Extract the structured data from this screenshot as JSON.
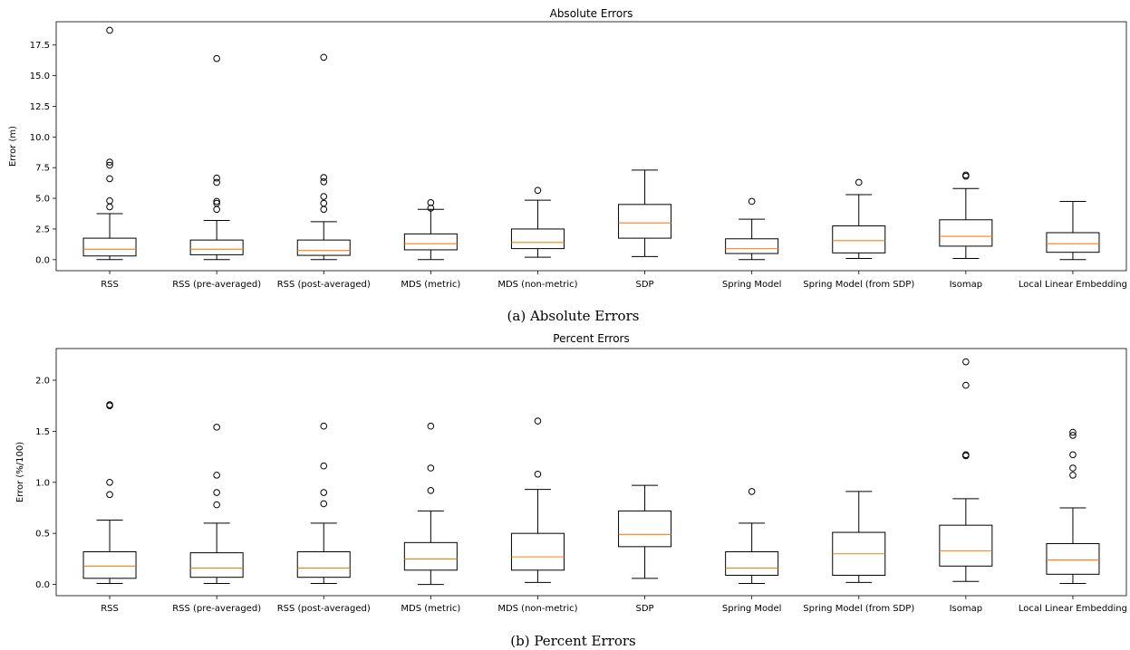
{
  "chart_data": [
    {
      "type": "box",
      "title": "Absolute Errors",
      "caption": "(a) Absolute Errors",
      "xlabel": "",
      "ylabel": "Error (m)",
      "ylim": [
        -0.9,
        19.4
      ],
      "yticks": [
        "0.0",
        "2.5",
        "5.0",
        "7.5",
        "10.0",
        "12.5",
        "15.0",
        "17.5"
      ],
      "yticks_values": [
        0,
        2.5,
        5,
        7.5,
        10,
        12.5,
        15,
        17.5
      ],
      "grid": false,
      "categories": [
        "RSS",
        "RSS (pre-averaged)",
        "RSS (post-averaged)",
        "MDS (metric)",
        "MDS (non-metric)",
        "SDP",
        "Spring Model",
        "Spring Model (from SDP)",
        "Isomap",
        "Local Linear Embedding"
      ],
      "boxes": [
        {
          "whisker_low": 0.0,
          "q1": 0.3,
          "median": 0.85,
          "q3": 1.75,
          "whisker_high": 3.75,
          "outliers": [
            4.3,
            4.8,
            6.6,
            7.7,
            7.95,
            18.7
          ]
        },
        {
          "whisker_low": 0.0,
          "q1": 0.4,
          "median": 0.85,
          "q3": 1.6,
          "whisker_high": 3.2,
          "outliers": [
            4.1,
            4.6,
            4.75,
            6.3,
            6.65,
            16.4
          ]
        },
        {
          "whisker_low": 0.0,
          "q1": 0.35,
          "median": 0.75,
          "q3": 1.6,
          "whisker_high": 3.1,
          "outliers": [
            4.1,
            4.6,
            5.15,
            6.35,
            6.7,
            16.5
          ]
        },
        {
          "whisker_low": 0.0,
          "q1": 0.8,
          "median": 1.3,
          "q3": 2.1,
          "whisker_high": 4.1,
          "outliers": [
            4.2,
            4.65
          ]
        },
        {
          "whisker_low": 0.2,
          "q1": 0.9,
          "median": 1.4,
          "q3": 2.5,
          "whisker_high": 4.85,
          "outliers": [
            5.65
          ]
        },
        {
          "whisker_low": 0.25,
          "q1": 1.75,
          "median": 3.0,
          "q3": 4.5,
          "whisker_high": 7.3,
          "outliers": []
        },
        {
          "whisker_low": 0.0,
          "q1": 0.5,
          "median": 0.9,
          "q3": 1.7,
          "whisker_high": 3.3,
          "outliers": [
            4.75
          ]
        },
        {
          "whisker_low": 0.1,
          "q1": 0.55,
          "median": 1.55,
          "q3": 2.75,
          "whisker_high": 5.3,
          "outliers": [
            6.3
          ]
        },
        {
          "whisker_low": 0.1,
          "q1": 1.1,
          "median": 1.9,
          "q3": 3.25,
          "whisker_high": 5.8,
          "outliers": [
            6.8,
            6.9
          ]
        },
        {
          "whisker_low": 0.0,
          "q1": 0.6,
          "median": 1.3,
          "q3": 2.2,
          "whisker_high": 4.75,
          "outliers": []
        }
      ]
    },
    {
      "type": "box",
      "title": "Percent Errors",
      "caption": "(b) Percent Errors",
      "xlabel": "",
      "ylabel": "Error (%/100)",
      "ylim": [
        -0.11,
        2.31
      ],
      "yticks": [
        "0.0",
        "0.5",
        "1.0",
        "1.5",
        "2.0"
      ],
      "yticks_values": [
        0,
        0.5,
        1,
        1.5,
        2
      ],
      "grid": false,
      "categories": [
        "RSS",
        "RSS (pre-averaged)",
        "RSS (post-averaged)",
        "MDS (metric)",
        "MDS (non-metric)",
        "SDP",
        "Spring Model",
        "Spring Model (from SDP)",
        "Isomap",
        "Local Linear Embedding"
      ],
      "boxes": [
        {
          "whisker_low": 0.01,
          "q1": 0.06,
          "median": 0.18,
          "q3": 0.32,
          "whisker_high": 0.63,
          "outliers": [
            0.88,
            1.0,
            1.75,
            1.76
          ]
        },
        {
          "whisker_low": 0.01,
          "q1": 0.07,
          "median": 0.16,
          "q3": 0.31,
          "whisker_high": 0.6,
          "outliers": [
            0.78,
            0.9,
            1.07,
            1.54
          ]
        },
        {
          "whisker_low": 0.01,
          "q1": 0.07,
          "median": 0.16,
          "q3": 0.32,
          "whisker_high": 0.6,
          "outliers": [
            0.79,
            0.9,
            1.16,
            1.55
          ]
        },
        {
          "whisker_low": 0.0,
          "q1": 0.14,
          "median": 0.25,
          "q3": 0.41,
          "whisker_high": 0.72,
          "outliers": [
            0.92,
            1.14,
            1.55
          ]
        },
        {
          "whisker_low": 0.02,
          "q1": 0.14,
          "median": 0.27,
          "q3": 0.5,
          "whisker_high": 0.93,
          "outliers": [
            1.08,
            1.6
          ]
        },
        {
          "whisker_low": 0.06,
          "q1": 0.37,
          "median": 0.49,
          "q3": 0.72,
          "whisker_high": 0.97,
          "outliers": []
        },
        {
          "whisker_low": 0.01,
          "q1": 0.09,
          "median": 0.16,
          "q3": 0.32,
          "whisker_high": 0.6,
          "outliers": [
            0.91
          ]
        },
        {
          "whisker_low": 0.02,
          "q1": 0.09,
          "median": 0.3,
          "q3": 0.51,
          "whisker_high": 0.91,
          "outliers": []
        },
        {
          "whisker_low": 0.03,
          "q1": 0.18,
          "median": 0.33,
          "q3": 0.58,
          "whisker_high": 0.84,
          "outliers": [
            1.26,
            1.27,
            1.95,
            2.18
          ]
        },
        {
          "whisker_low": 0.01,
          "q1": 0.1,
          "median": 0.24,
          "q3": 0.4,
          "whisker_high": 0.75,
          "outliers": [
            1.07,
            1.14,
            1.27,
            1.46,
            1.49
          ]
        }
      ]
    }
  ],
  "colors": {
    "median": "#ff7f0e",
    "box": "#000000",
    "background": "#ffffff"
  }
}
